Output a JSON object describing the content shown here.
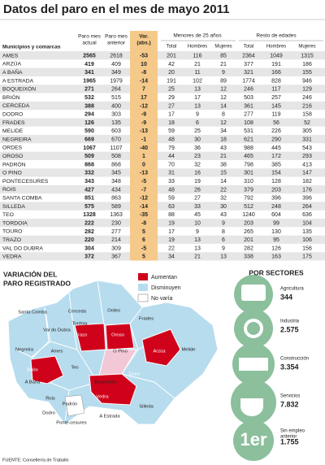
{
  "header": {
    "title": "Datos del paro en el mes de mayo 2011"
  },
  "table": {
    "columns": {
      "name": "Municipios y comarcas",
      "actual": [
        "Paro mes",
        "actual"
      ],
      "previous": [
        "Paro mes",
        "anterior"
      ],
      "var": [
        "Var.",
        "(abs.)"
      ],
      "groups": [
        "Menores de 25 años",
        "Resto de edades"
      ],
      "sub": [
        "Total",
        "Hombres",
        "Mujeres",
        "Total",
        "Hombres",
        "Mujeres"
      ]
    },
    "rows": [
      [
        "AMES",
        2565,
        2618,
        -53,
        201,
        116,
        85,
        2364,
        1049,
        1315
      ],
      [
        "ARZÚA",
        419,
        409,
        10,
        42,
        21,
        21,
        377,
        191,
        186
      ],
      [
        "A BAÑA",
        341,
        349,
        -8,
        20,
        11,
        9,
        321,
        166,
        155
      ],
      [
        "A ESTRADA",
        1965,
        1979,
        -14,
        191,
        102,
        89,
        1774,
        828,
        946
      ],
      [
        "BOQUEIXÓN",
        271,
        264,
        7,
        25,
        13,
        12,
        246,
        117,
        129
      ],
      [
        "BRIÓN",
        532,
        515,
        17,
        29,
        17,
        12,
        503,
        257,
        246
      ],
      [
        "CERCEDA",
        388,
        400,
        -12,
        27,
        13,
        14,
        361,
        145,
        216
      ],
      [
        "DODRO",
        294,
        303,
        -9,
        17,
        9,
        8,
        277,
        119,
        158
      ],
      [
        "FRADES",
        126,
        135,
        -9,
        18,
        6,
        12,
        108,
        56,
        52
      ],
      [
        "MELIDE",
        590,
        603,
        -13,
        59,
        25,
        34,
        531,
        226,
        305
      ],
      [
        "NEGREIRA",
        669,
        670,
        -1,
        48,
        30,
        18,
        621,
        290,
        331
      ],
      [
        "ORDES",
        1067,
        1107,
        -40,
        79,
        36,
        43,
        988,
        445,
        543
      ],
      [
        "OROSO",
        509,
        508,
        1,
        44,
        23,
        21,
        465,
        172,
        293
      ],
      [
        "PADRÓN",
        868,
        868,
        0,
        70,
        32,
        38,
        798,
        385,
        413
      ],
      [
        "O PINO",
        332,
        345,
        -13,
        31,
        16,
        15,
        301,
        154,
        147
      ],
      [
        "PONTECESURES",
        343,
        348,
        -5,
        33,
        19,
        14,
        310,
        128,
        182
      ],
      [
        "ROIS",
        427,
        434,
        -7,
        48,
        26,
        22,
        379,
        203,
        176
      ],
      [
        "SANTA COMBA",
        851,
        863,
        -12,
        59,
        27,
        32,
        792,
        396,
        396
      ],
      [
        "SILLEDA",
        575,
        589,
        -14,
        63,
        33,
        30,
        512,
        248,
        264
      ],
      [
        "TEO",
        1328,
        1363,
        -35,
        88,
        45,
        43,
        1240,
        604,
        636
      ],
      [
        "TORDOIA",
        222,
        230,
        -8,
        19,
        10,
        9,
        203,
        99,
        104
      ],
      [
        "TOURO",
        282,
        277,
        5,
        17,
        9,
        8,
        265,
        130,
        135
      ],
      [
        "TRAZO",
        220,
        214,
        6,
        19,
        13,
        6,
        201,
        95,
        106
      ],
      [
        "VAL DO DUBRA",
        304,
        309,
        -5,
        22,
        13,
        9,
        282,
        126,
        156
      ],
      [
        "VEDRA",
        372,
        367,
        5,
        34,
        21,
        13,
        338,
        163,
        175
      ]
    ]
  },
  "map": {
    "title": [
      "VARIACIÓN DEL",
      "PARO REGISTRADO"
    ],
    "legend": [
      "Aumentan",
      "Disminuyen",
      "No varía"
    ],
    "labels": [
      "Cerceda",
      "Tordoia",
      "Santa Comba",
      "Ordes",
      "Trazo",
      "Val do Dubra",
      "Oroso",
      "Frades",
      "Negreira",
      "Ames",
      "O Pino",
      "Arzúa",
      "Melide",
      "Brión",
      "Teo",
      "Boqueixón",
      "Touro",
      "Rois",
      "Vedra",
      "Padrón",
      "A Estrada",
      "Silleda",
      "Dodro",
      "Ponte-cesures",
      "A Baña"
    ]
  },
  "sectors": {
    "title": "POR SECTORES",
    "items": [
      {
        "name": "Agricultura",
        "value": "344"
      },
      {
        "name": "Industria",
        "value": "2.575"
      },
      {
        "name": "Construcción",
        "value": "3.354"
      },
      {
        "name": "Servicios",
        "value": "7.832"
      },
      {
        "name": [
          "Sin empleo",
          "anterior"
        ],
        "value": "1.755",
        "icon": "1er"
      }
    ]
  },
  "source": "FUENTE: Consellería de Traballo"
}
